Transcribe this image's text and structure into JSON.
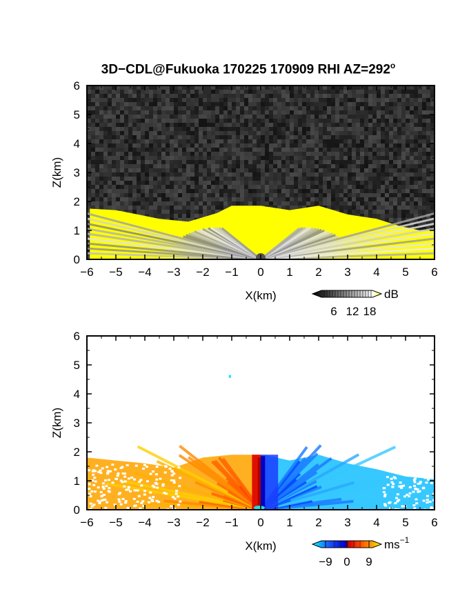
{
  "title": {
    "main": "3D−CDL@Fukuoka 170225 170909 RHI AZ=292",
    "degree_mark": "o"
  },
  "chart_data": [
    {
      "type": "heatmap",
      "name": "snr_panel",
      "xlabel": "X(km)",
      "ylabel": "Z(km)",
      "xlim": [
        -6,
        6
      ],
      "ylim": [
        0,
        6
      ],
      "xticks": [
        -6,
        -5,
        -4,
        -3,
        -2,
        -1,
        0,
        1,
        2,
        3,
        4,
        5,
        6
      ],
      "yticks": [
        0,
        1,
        2,
        3,
        4,
        5,
        6
      ],
      "background": "dark noise",
      "echo_top_km": [
        {
          "x": -5.9,
          "z": 1.75
        },
        {
          "x": -5.0,
          "z": 1.7
        },
        {
          "x": -4.5,
          "z": 1.6
        },
        {
          "x": -3.5,
          "z": 1.4
        },
        {
          "x": -2.5,
          "z": 1.3
        },
        {
          "x": -1.5,
          "z": 1.6
        },
        {
          "x": -1.0,
          "z": 1.85
        },
        {
          "x": 0.0,
          "z": 1.85
        },
        {
          "x": 1.0,
          "z": 1.7
        },
        {
          "x": 2.0,
          "z": 1.85
        },
        {
          "x": 3.0,
          "z": 1.55
        },
        {
          "x": 4.0,
          "z": 1.4
        },
        {
          "x": 4.8,
          "z": 1.15
        },
        {
          "x": 5.5,
          "z": 1.0
        },
        {
          "x": 6.0,
          "z": 1.0
        }
      ],
      "colorbar": {
        "unit": "dB",
        "ticks": [
          "6",
          "12",
          "18"
        ],
        "colors": [
          "#000000",
          "#555555",
          "#aaaaaa",
          "#ffffff",
          "#ffff00"
        ]
      }
    },
    {
      "type": "heatmap",
      "name": "velocity_panel",
      "xlabel": "X(km)",
      "ylabel": "Z(km)",
      "xlim": [
        -6,
        6
      ],
      "ylim": [
        0,
        6
      ],
      "xticks": [
        -6,
        -5,
        -4,
        -3,
        -2,
        -1,
        0,
        1,
        2,
        3,
        4,
        5,
        6
      ],
      "yticks": [
        0,
        1,
        2,
        3,
        4,
        5,
        6
      ],
      "echo_top_km": [
        {
          "x": -6.0,
          "z": 1.8
        },
        {
          "x": -5.0,
          "z": 1.7
        },
        {
          "x": -4.0,
          "z": 1.6
        },
        {
          "x": -3.0,
          "z": 1.45
        },
        {
          "x": -2.0,
          "z": 1.8
        },
        {
          "x": -1.0,
          "z": 1.9
        },
        {
          "x": 0.0,
          "z": 1.9
        },
        {
          "x": 1.0,
          "z": 1.7
        },
        {
          "x": 2.0,
          "z": 1.9
        },
        {
          "x": 3.0,
          "z": 1.6
        },
        {
          "x": 4.0,
          "z": 1.4
        },
        {
          "x": 5.0,
          "z": 1.15
        },
        {
          "x": 6.0,
          "z": 1.05
        }
      ],
      "isolated_point": {
        "x": -1.1,
        "z": 4.65
      },
      "colorbar": {
        "unit": "ms",
        "unit_exponent": "−1",
        "ticks": [
          "−9",
          "0",
          "9"
        ],
        "colors": [
          "#00ffff",
          "#1e5fff",
          "#0000cc",
          "#cc0000",
          "#ff4000",
          "#ffa000",
          "#ffff00"
        ]
      }
    }
  ]
}
